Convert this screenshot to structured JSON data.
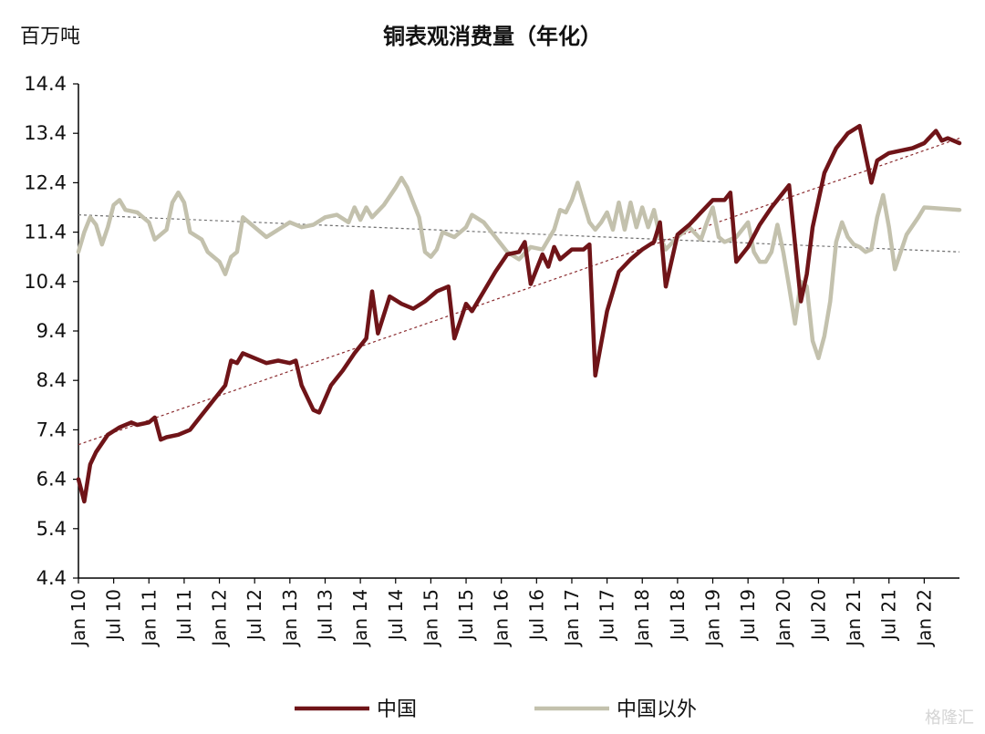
{
  "chart_data": {
    "type": "line",
    "title": "铜表观消费量（年化）",
    "unit_label": "百万吨",
    "ylim": [
      4.4,
      14.4
    ],
    "yticks": [
      "14.4",
      "13.4",
      "12.4",
      "11.4",
      "10.4",
      "9.4",
      "8.4",
      "7.4",
      "6.4",
      "5.4",
      "4.4"
    ],
    "xticks": [
      "Jan 10",
      "Jul 10",
      "Jan 11",
      "Jul 11",
      "Jan 12",
      "Jul 12",
      "Jan 13",
      "Jul 13",
      "Jan 14",
      "Jul 14",
      "Jan 15",
      "Jul 15",
      "Jan 16",
      "Jul 16",
      "Jan 17",
      "Jul 17",
      "Jan 18",
      "Jul 18",
      "Jan 19",
      "Jul 19",
      "Jan 20",
      "Jul 20",
      "Jan 21",
      "Jul 21",
      "Jan 22"
    ],
    "grid": false,
    "legend_position": "bottom",
    "series": [
      {
        "name": "中国",
        "color": "#6f1418",
        "trendline": [
          [
            0,
            7.1
          ],
          [
            150,
            13.3
          ]
        ],
        "points": [
          [
            0,
            6.4
          ],
          [
            1,
            5.95
          ],
          [
            2,
            6.7
          ],
          [
            3,
            6.95
          ],
          [
            5,
            7.3
          ],
          [
            7,
            7.45
          ],
          [
            9,
            7.55
          ],
          [
            10,
            7.5
          ],
          [
            12,
            7.55
          ],
          [
            13,
            7.65
          ],
          [
            14,
            7.2
          ],
          [
            15,
            7.25
          ],
          [
            17,
            7.3
          ],
          [
            19,
            7.4
          ],
          [
            21,
            7.7
          ],
          [
            23,
            8.0
          ],
          [
            25,
            8.3
          ],
          [
            26,
            8.8
          ],
          [
            27,
            8.75
          ],
          [
            28,
            8.95
          ],
          [
            30,
            8.85
          ],
          [
            32,
            8.75
          ],
          [
            34,
            8.8
          ],
          [
            36,
            8.75
          ],
          [
            37,
            8.8
          ],
          [
            38,
            8.3
          ],
          [
            40,
            7.8
          ],
          [
            41,
            7.75
          ],
          [
            43,
            8.3
          ],
          [
            45,
            8.6
          ],
          [
            47,
            8.95
          ],
          [
            49,
            9.25
          ],
          [
            50,
            10.2
          ],
          [
            51,
            9.35
          ],
          [
            53,
            10.1
          ],
          [
            55,
            9.95
          ],
          [
            57,
            9.85
          ],
          [
            59,
            10.0
          ],
          [
            61,
            10.2
          ],
          [
            63,
            10.3
          ],
          [
            64,
            9.25
          ],
          [
            66,
            9.95
          ],
          [
            67,
            9.8
          ],
          [
            69,
            10.2
          ],
          [
            71,
            10.6
          ],
          [
            73,
            10.95
          ],
          [
            75,
            11.0
          ],
          [
            76,
            11.2
          ],
          [
            77,
            10.35
          ],
          [
            79,
            10.95
          ],
          [
            80,
            10.7
          ],
          [
            81,
            11.1
          ],
          [
            82,
            10.85
          ],
          [
            84,
            11.05
          ],
          [
            86,
            11.05
          ],
          [
            87,
            11.15
          ],
          [
            88,
            8.5
          ],
          [
            90,
            9.8
          ],
          [
            92,
            10.6
          ],
          [
            94,
            10.85
          ],
          [
            96,
            11.05
          ],
          [
            98,
            11.2
          ],
          [
            99,
            11.6
          ],
          [
            100,
            10.3
          ],
          [
            102,
            11.35
          ],
          [
            104,
            11.55
          ],
          [
            106,
            11.8
          ],
          [
            108,
            12.05
          ],
          [
            110,
            12.05
          ],
          [
            111,
            12.2
          ],
          [
            112,
            10.8
          ],
          [
            114,
            11.1
          ],
          [
            116,
            11.55
          ],
          [
            118,
            11.9
          ],
          [
            120,
            12.2
          ],
          [
            121,
            12.35
          ],
          [
            123,
            10.0
          ],
          [
            124,
            10.55
          ],
          [
            125,
            11.5
          ],
          [
            127,
            12.6
          ],
          [
            129,
            13.1
          ],
          [
            131,
            13.4
          ],
          [
            133,
            13.55
          ],
          [
            135,
            12.4
          ],
          [
            136,
            12.85
          ],
          [
            138,
            13.0
          ],
          [
            140,
            13.05
          ],
          [
            142,
            13.1
          ],
          [
            144,
            13.2
          ],
          [
            146,
            13.45
          ],
          [
            147,
            13.25
          ],
          [
            148,
            13.3
          ],
          [
            150,
            13.2
          ]
        ]
      },
      {
        "name": "中国以外",
        "color": "#c3c1ad",
        "trendline": [
          [
            0,
            11.75
          ],
          [
            150,
            11.0
          ]
        ],
        "points": [
          [
            0,
            11.0
          ],
          [
            1,
            11.4
          ],
          [
            2,
            11.7
          ],
          [
            3,
            11.55
          ],
          [
            4,
            11.15
          ],
          [
            5,
            11.5
          ],
          [
            6,
            11.95
          ],
          [
            7,
            12.05
          ],
          [
            8,
            11.85
          ],
          [
            10,
            11.8
          ],
          [
            12,
            11.6
          ],
          [
            13,
            11.25
          ],
          [
            15,
            11.45
          ],
          [
            16,
            12.0
          ],
          [
            17,
            12.2
          ],
          [
            18,
            12.0
          ],
          [
            19,
            11.4
          ],
          [
            21,
            11.25
          ],
          [
            22,
            11.0
          ],
          [
            24,
            10.8
          ],
          [
            25,
            10.55
          ],
          [
            26,
            10.9
          ],
          [
            27,
            11.0
          ],
          [
            28,
            11.7
          ],
          [
            30,
            11.5
          ],
          [
            32,
            11.3
          ],
          [
            34,
            11.45
          ],
          [
            36,
            11.6
          ],
          [
            38,
            11.5
          ],
          [
            40,
            11.55
          ],
          [
            42,
            11.7
          ],
          [
            44,
            11.75
          ],
          [
            46,
            11.6
          ],
          [
            47,
            11.9
          ],
          [
            48,
            11.65
          ],
          [
            49,
            11.9
          ],
          [
            50,
            11.7
          ],
          [
            52,
            11.95
          ],
          [
            54,
            12.3
          ],
          [
            55,
            12.5
          ],
          [
            56,
            12.3
          ],
          [
            58,
            11.7
          ],
          [
            59,
            11.0
          ],
          [
            60,
            10.9
          ],
          [
            61,
            11.05
          ],
          [
            62,
            11.4
          ],
          [
            64,
            11.3
          ],
          [
            66,
            11.5
          ],
          [
            67,
            11.75
          ],
          [
            69,
            11.6
          ],
          [
            71,
            11.3
          ],
          [
            73,
            11.0
          ],
          [
            75,
            10.85
          ],
          [
            77,
            11.1
          ],
          [
            79,
            11.05
          ],
          [
            81,
            11.45
          ],
          [
            82,
            11.85
          ],
          [
            83,
            11.8
          ],
          [
            84,
            12.05
          ],
          [
            85,
            12.4
          ],
          [
            86,
            12.0
          ],
          [
            87,
            11.6
          ],
          [
            88,
            11.45
          ],
          [
            89,
            11.6
          ],
          [
            90,
            11.8
          ],
          [
            91,
            11.45
          ],
          [
            92,
            12.0
          ],
          [
            93,
            11.45
          ],
          [
            94,
            12.0
          ],
          [
            95,
            11.5
          ],
          [
            96,
            11.9
          ],
          [
            97,
            11.5
          ],
          [
            98,
            11.85
          ],
          [
            99,
            11.3
          ],
          [
            100,
            11.05
          ],
          [
            102,
            11.3
          ],
          [
            104,
            11.5
          ],
          [
            106,
            11.25
          ],
          [
            107,
            11.6
          ],
          [
            108,
            11.9
          ],
          [
            109,
            11.3
          ],
          [
            110,
            11.2
          ],
          [
            112,
            11.3
          ],
          [
            114,
            11.6
          ],
          [
            115,
            11.0
          ],
          [
            116,
            10.8
          ],
          [
            117,
            10.8
          ],
          [
            118,
            11.0
          ],
          [
            119,
            11.55
          ],
          [
            120,
            11.0
          ],
          [
            121,
            10.3
          ],
          [
            122,
            9.55
          ],
          [
            123,
            10.4
          ],
          [
            124,
            10.3
          ],
          [
            125,
            9.2
          ],
          [
            126,
            8.85
          ],
          [
            127,
            9.3
          ],
          [
            128,
            10.0
          ],
          [
            129,
            11.2
          ],
          [
            130,
            11.6
          ],
          [
            131,
            11.3
          ],
          [
            132,
            11.15
          ],
          [
            133,
            11.1
          ],
          [
            134,
            11.0
          ],
          [
            135,
            11.05
          ],
          [
            136,
            11.7
          ],
          [
            137,
            12.15
          ],
          [
            138,
            11.5
          ],
          [
            139,
            10.65
          ],
          [
            141,
            11.35
          ],
          [
            143,
            11.7
          ],
          [
            144,
            11.9
          ],
          [
            150,
            11.85
          ]
        ]
      }
    ]
  },
  "watermark": "格隆汇"
}
